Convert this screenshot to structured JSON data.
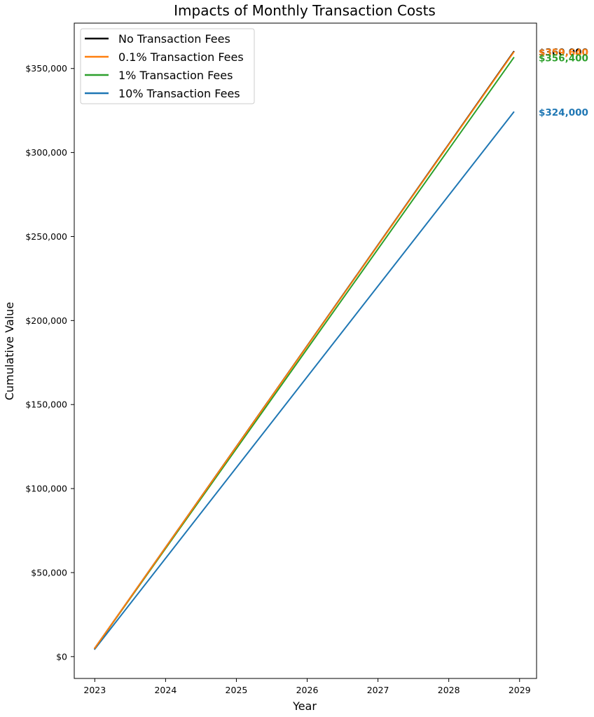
{
  "chart_data": {
    "type": "line",
    "title": "Impacts of Monthly Transaction Costs",
    "xlabel": "Year",
    "ylabel": "Cumulative Value",
    "x_start": "2023-01",
    "x_end": "2028-12",
    "xlim": [
      2022.71,
      2029.24
    ],
    "ylim": [
      -13000,
      377000
    ],
    "x_ticks": [
      2023,
      2024,
      2025,
      2026,
      2027,
      2028,
      2029
    ],
    "y_ticks": [
      0,
      50000,
      100000,
      150000,
      200000,
      250000,
      300000,
      350000
    ],
    "y_tick_labels": [
      "$0",
      "$50,000",
      "$100,000",
      "$150,000",
      "$200,000",
      "$250,000",
      "$300,000",
      "$350,000"
    ],
    "legend_position": "top-left",
    "grid": false,
    "series": [
      {
        "name": "No Transaction Fees",
        "color": "#000000",
        "start_value": 5000,
        "end_value": 360000,
        "end_label": "$360,000"
      },
      {
        "name": "0.1% Transaction Fees",
        "color": "#ff7f0e",
        "start_value": 4995,
        "end_value": 359640,
        "end_label": "$359,640"
      },
      {
        "name": "1% Transaction Fees",
        "color": "#2ca02c",
        "start_value": 4950,
        "end_value": 356400,
        "end_label": "$356,400"
      },
      {
        "name": "10% Transaction Fees",
        "color": "#1f77b4",
        "start_value": 4500,
        "end_value": 324000,
        "end_label": "$324,000"
      }
    ]
  }
}
